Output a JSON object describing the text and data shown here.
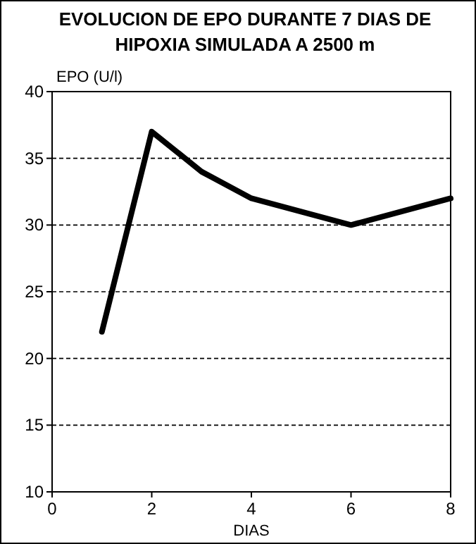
{
  "chart_data": {
    "type": "line",
    "title": "EVOLUCION DE EPO DURANTE 7 DIAS DE\nHIPOXIA SIMULADA A 2500 m",
    "xlabel": "DIAS",
    "ylabel": "EPO (U/l)",
    "x": [
      1,
      2,
      3,
      4,
      5,
      6,
      7,
      8
    ],
    "series": [
      {
        "color": "#000000",
        "values": [
          22,
          37,
          34,
          32,
          31,
          30,
          31,
          32
        ]
      }
    ],
    "xlim": [
      0,
      8
    ],
    "xticks": [
      0,
      2,
      4,
      6,
      8
    ],
    "ylim": [
      10,
      40
    ],
    "yticks": [
      10,
      15,
      20,
      25,
      30,
      35,
      40
    ],
    "grid": "y",
    "marker": "none",
    "line_style": "solid"
  }
}
